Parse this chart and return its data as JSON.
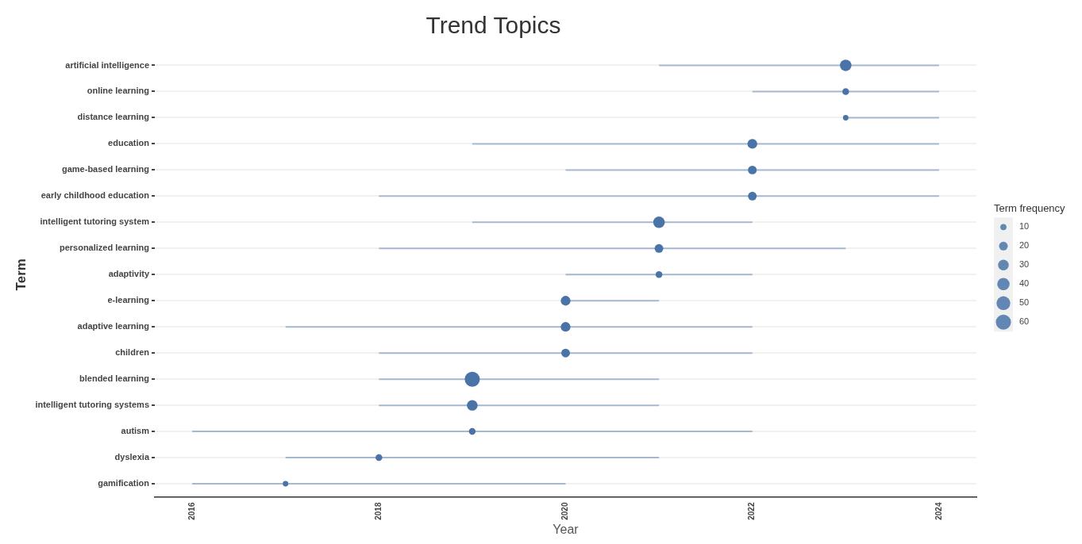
{
  "chart_data": {
    "type": "bubble",
    "title": "Trend Topics",
    "xlabel": "Year",
    "ylabel": "Term",
    "legend_title": "Term frequency",
    "orientation": "horizontal",
    "grid": "y",
    "categories": [
      "artificial intelligence",
      "online learning",
      "distance learning",
      "education",
      "game-based learning",
      "early childhood education",
      "intelligent tutoring system",
      "personalized learning",
      "adaptivity",
      "e-learning",
      "adaptive learning",
      "children",
      "blended learning",
      "intelligent tutoring systems",
      "autism",
      "dyslexia",
      "gamification"
    ],
    "xlim": [
      2015.6,
      2024.4
    ],
    "xticks": [
      2016,
      2018,
      2020,
      2022,
      2024
    ],
    "size_legend": [
      10,
      20,
      30,
      40,
      50,
      60
    ],
    "series": [
      {
        "color": "#4a74a8",
        "values": [
          2023,
          2023,
          2023,
          2022,
          2022,
          2022,
          2021,
          2021,
          2021,
          2020,
          2020,
          2020,
          2019,
          2019,
          2019,
          2018,
          2017
        ],
        "sizes": [
          35,
          12,
          8,
          25,
          20,
          20,
          35,
          20,
          12,
          25,
          25,
          20,
          60,
          30,
          12,
          12,
          8
        ],
        "errors": [
          [
            2021,
            2024
          ],
          [
            2022,
            2024
          ],
          [
            2023,
            2024
          ],
          [
            2019,
            2024
          ],
          [
            2020,
            2024
          ],
          [
            2018,
            2024
          ],
          [
            2019,
            2022
          ],
          [
            2018,
            2023
          ],
          [
            2020,
            2022
          ],
          [
            2020,
            2021
          ],
          [
            2017,
            2022
          ],
          [
            2018,
            2022
          ],
          [
            2018,
            2021
          ],
          [
            2018,
            2021
          ],
          [
            2016,
            2022
          ],
          [
            2017,
            2021
          ],
          [
            2016,
            2020
          ]
        ]
      }
    ]
  }
}
